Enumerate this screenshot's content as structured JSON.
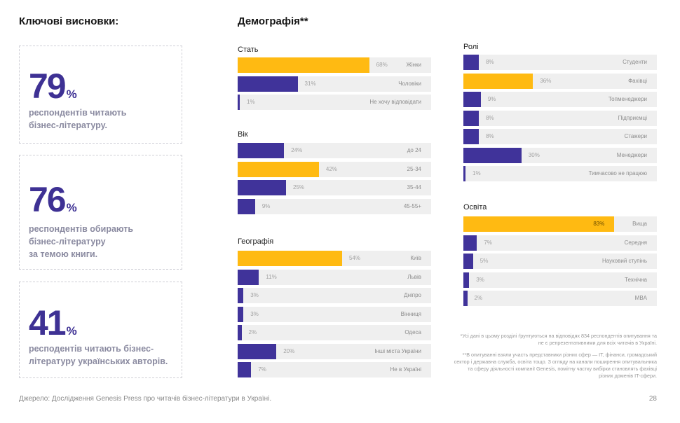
{
  "left": {
    "title": "Ключові висновки:",
    "cards": [
      {
        "number": "79",
        "unit": "%",
        "text": "респондентів читають\nбізнес-літературу."
      },
      {
        "number": "76",
        "unit": "%",
        "text": "респондентів обирають\nбізнес-літературу\nза темою книги."
      },
      {
        "number": "41",
        "unit": "%",
        "text": "респодентів читають бізнес-\nлітературу українських авторів."
      }
    ]
  },
  "demographics_title": "Демографія**",
  "colors": {
    "accent": "#ffba12",
    "primary": "#40339a",
    "track": "#efefef"
  },
  "chart_data": [
    {
      "type": "bar",
      "title": "Стать",
      "orientation": "horizontal",
      "unit": "%",
      "xlim": [
        0,
        100
      ],
      "categories": [
        "Жінки",
        "Чоловіки",
        "Не хочу відповідати"
      ],
      "values": [
        68,
        31,
        1
      ],
      "highlight": [
        true,
        false,
        false
      ]
    },
    {
      "type": "bar",
      "title": "Вік",
      "orientation": "horizontal",
      "unit": "%",
      "xlim": [
        0,
        100
      ],
      "categories": [
        "до 24",
        "25-34",
        "35-44",
        "45-55+"
      ],
      "values": [
        24,
        42,
        25,
        9
      ],
      "highlight": [
        false,
        true,
        false,
        false
      ]
    },
    {
      "type": "bar",
      "title": "Географія",
      "orientation": "horizontal",
      "unit": "%",
      "xlim": [
        0,
        100
      ],
      "categories": [
        "Київ",
        "Львів",
        "Дніпро",
        "Вінниця",
        "Одеса",
        "Інші міста України",
        "Не в Україні"
      ],
      "values": [
        54,
        11,
        3,
        3,
        2,
        20,
        7
      ],
      "highlight": [
        true,
        false,
        false,
        false,
        false,
        false,
        false
      ]
    },
    {
      "type": "bar",
      "title": "Ролі",
      "orientation": "horizontal",
      "unit": "%",
      "xlim": [
        0,
        100
      ],
      "categories": [
        "Студенти",
        "Фахівці",
        "Топменеджери",
        "Підприємці",
        "Стажери",
        "Менеджери",
        "Тимчасово не працюю"
      ],
      "values": [
        8,
        36,
        9,
        8,
        8,
        30,
        1
      ],
      "highlight": [
        false,
        true,
        false,
        false,
        false,
        false,
        false
      ]
    },
    {
      "type": "bar",
      "title": "Освіта",
      "orientation": "horizontal",
      "unit": "%",
      "xlim": [
        0,
        100
      ],
      "categories": [
        "Вища",
        "Середня",
        "Науковий ступінь",
        "Технічна",
        "MBA"
      ],
      "values": [
        83,
        7,
        5,
        3,
        2
      ],
      "highlight": [
        true,
        false,
        false,
        false,
        false
      ]
    }
  ],
  "footnotes": [
    "*Усі дані в цьому розділі ґрунтуються на відповідях 834 респондентів опитування та не є репрезентативними для всіх читачів в Україні.",
    "**В опитуванні взяли участь представники різних сфер — IT, фінанси, громадський сектор і державна служба, освіта тощо. З огляду на канали поширення опитувальника та сферу діяльності компанії Genesis, помітну частку вибірки становлять фахівці різних доменів IT-сфери."
  ],
  "source": "Джерело: Дослідження Genesis Press про читачів бізнес-літератури в Україні.",
  "page_number": "28"
}
